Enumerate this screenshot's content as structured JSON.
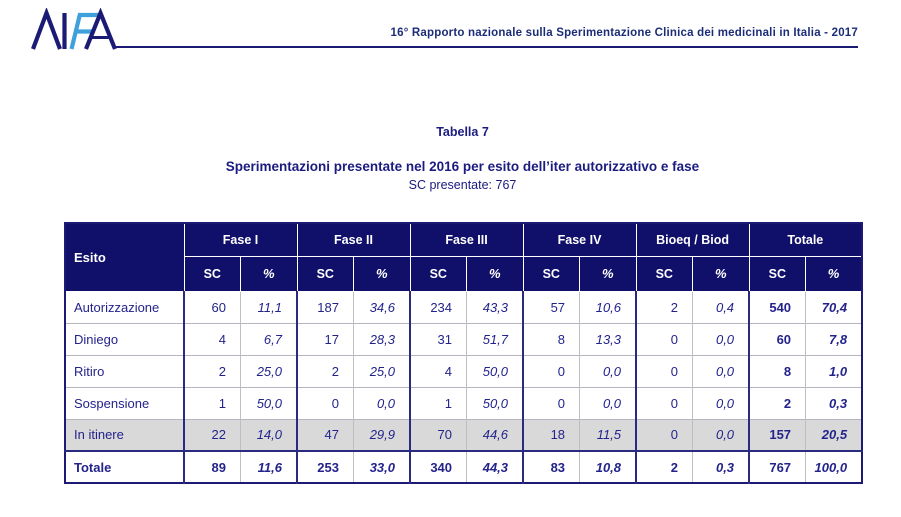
{
  "colors": {
    "navy_dark": "#10106a",
    "navy_text": "#23238c",
    "navy_line": "#1b1b75",
    "logo_blue": "#3fa0dc",
    "highlight_gray": "#d9d9d9"
  },
  "header": {
    "logo_name": "AIFA",
    "title": "16° Rapporto nazionale sulla Sperimentazione Clinica dei medicinali in Italia - 2017"
  },
  "titles": {
    "caption": "Tabella 7",
    "title": "Sperimentazioni presentate nel 2016 per esito dell’iter autorizzativo e fase",
    "subtitle": "SC presentate: 767"
  },
  "chart_data": {
    "type": "table",
    "title": "Sperimentazioni presentate nel 2016 per esito dell’iter autorizzativo e fase",
    "corner_header": "Esito",
    "groups": [
      "Fase I",
      "Fase II",
      "Fase III",
      "Fase IV",
      "Bioeq / Biod",
      "Totale"
    ],
    "subheaders": [
      "SC",
      "%"
    ],
    "rows": [
      {
        "label": "Autorizzazione",
        "highlight": false,
        "bold": false,
        "values": [
          "60",
          "11,1",
          "187",
          "34,6",
          "234",
          "43,3",
          "57",
          "10,6",
          "2",
          "0,4",
          "540",
          "70,4"
        ]
      },
      {
        "label": "Diniego",
        "highlight": false,
        "bold": false,
        "values": [
          "4",
          "6,7",
          "17",
          "28,3",
          "31",
          "51,7",
          "8",
          "13,3",
          "0",
          "0,0",
          "60",
          "7,8"
        ]
      },
      {
        "label": "Ritiro",
        "highlight": false,
        "bold": false,
        "values": [
          "2",
          "25,0",
          "2",
          "25,0",
          "4",
          "50,0",
          "0",
          "0,0",
          "0",
          "0,0",
          "8",
          "1,0"
        ]
      },
      {
        "label": "Sospensione",
        "highlight": false,
        "bold": false,
        "values": [
          "1",
          "50,0",
          "0",
          "0,0",
          "1",
          "50,0",
          "0",
          "0,0",
          "0",
          "0,0",
          "2",
          "0,3"
        ]
      },
      {
        "label": "In itinere",
        "highlight": true,
        "bold": false,
        "values": [
          "22",
          "14,0",
          "47",
          "29,9",
          "70",
          "44,6",
          "18",
          "11,5",
          "0",
          "0,0",
          "157",
          "20,5"
        ]
      },
      {
        "label": "Totale",
        "highlight": false,
        "bold": true,
        "values": [
          "89",
          "11,6",
          "253",
          "33,0",
          "340",
          "44,3",
          "83",
          "10,8",
          "2",
          "0,3",
          "767",
          "100,0"
        ]
      }
    ]
  }
}
